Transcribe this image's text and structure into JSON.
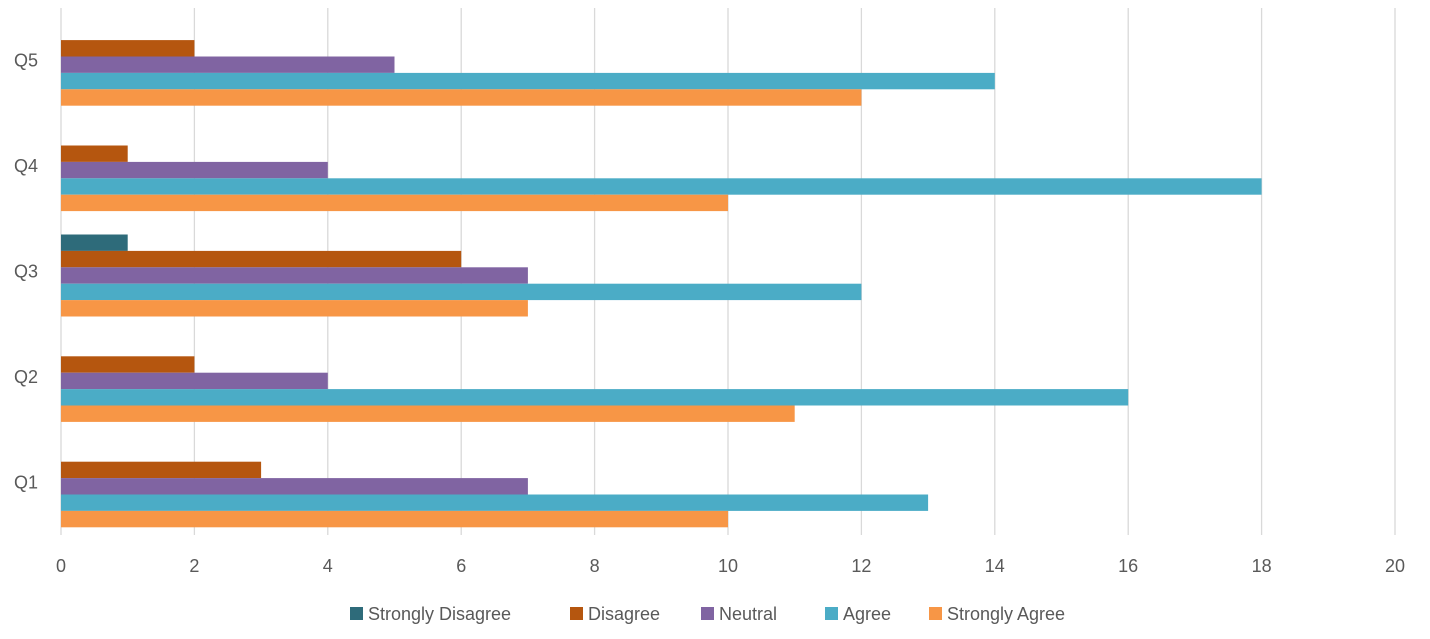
{
  "chart_data": {
    "type": "bar",
    "orientation": "horizontal",
    "title": "",
    "xlabel": "",
    "ylabel": "",
    "categories": [
      "Q1",
      "Q2",
      "Q3",
      "Q4",
      "Q5"
    ],
    "xlim": [
      0,
      20
    ],
    "x_ticks": [
      0,
      2,
      4,
      6,
      8,
      10,
      12,
      14,
      16,
      18,
      20
    ],
    "x_tick_labels": [
      "0",
      "2",
      "4",
      "6",
      "8",
      "10",
      "12",
      "14",
      "16",
      "18",
      "20"
    ],
    "grid": "vertical",
    "legend_position": "bottom",
    "series": [
      {
        "name": "Strongly Disagree",
        "color": "#2e6b7a",
        "values": [
          0,
          0,
          1,
          0,
          0
        ]
      },
      {
        "name": "Disagree",
        "color": "#b5560f",
        "values": [
          3,
          2,
          6,
          1,
          2
        ]
      },
      {
        "name": "Neutral",
        "color": "#8064a2",
        "values": [
          7,
          4,
          7,
          4,
          5
        ]
      },
      {
        "name": "Agree",
        "color": "#4bacc6",
        "values": [
          13,
          16,
          12,
          18,
          14
        ]
      },
      {
        "name": "Strongly Agree",
        "color": "#f79646",
        "values": [
          10,
          11,
          7,
          10,
          12
        ]
      }
    ]
  }
}
